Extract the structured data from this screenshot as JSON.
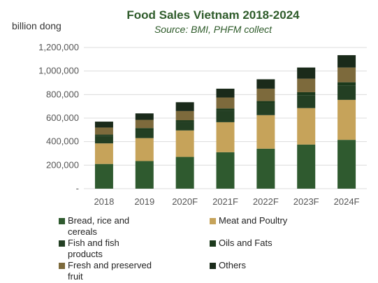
{
  "chart_data": {
    "type": "bar",
    "stacked": true,
    "title": "Food Sales Vietnam 2018-2024",
    "subtitle": "Source: BMI, PHFM collect",
    "ylabel": "billion dong",
    "xlabel": "",
    "ylim": [
      0,
      1200000
    ],
    "yticks": [
      0,
      200000,
      400000,
      600000,
      800000,
      1000000,
      1200000
    ],
    "ytick_labels": [
      "-",
      "200,000",
      "400,000",
      "600,000",
      "800,000",
      "1,000,000",
      "1,200,000"
    ],
    "grid": true,
    "legend_position": "bottom",
    "categories": [
      "2018",
      "2019",
      "2020F",
      "2021F",
      "2022F",
      "2023F",
      "2024F"
    ],
    "series": [
      {
        "name": "Bread, rice and cereals",
        "color": "#2f5a2f",
        "values": [
          210000,
          235000,
          270000,
          310000,
          340000,
          375000,
          415000
        ]
      },
      {
        "name": "Meat and Poultry",
        "color": "#c6a35a",
        "values": [
          175000,
          195000,
          225000,
          255000,
          285000,
          310000,
          340000
        ]
      },
      {
        "name": "Fish and fish products",
        "color": "#233f23",
        "values": [
          65000,
          72000,
          72000,
          100000,
          100000,
          110000,
          120000
        ]
      },
      {
        "name": "Oils and Fats",
        "color": "#1c3a1c",
        "values": [
          10000,
          13000,
          15000,
          17000,
          20000,
          25000,
          30000
        ]
      },
      {
        "name": "Fresh and preserved fruit",
        "color": "#7d6a3c",
        "values": [
          60000,
          70000,
          78000,
          93000,
          105000,
          115000,
          125000
        ]
      },
      {
        "name": "Others",
        "color": "#1a2a1a",
        "values": [
          50000,
          55000,
          75000,
          75000,
          80000,
          95000,
          105000
        ]
      }
    ]
  }
}
